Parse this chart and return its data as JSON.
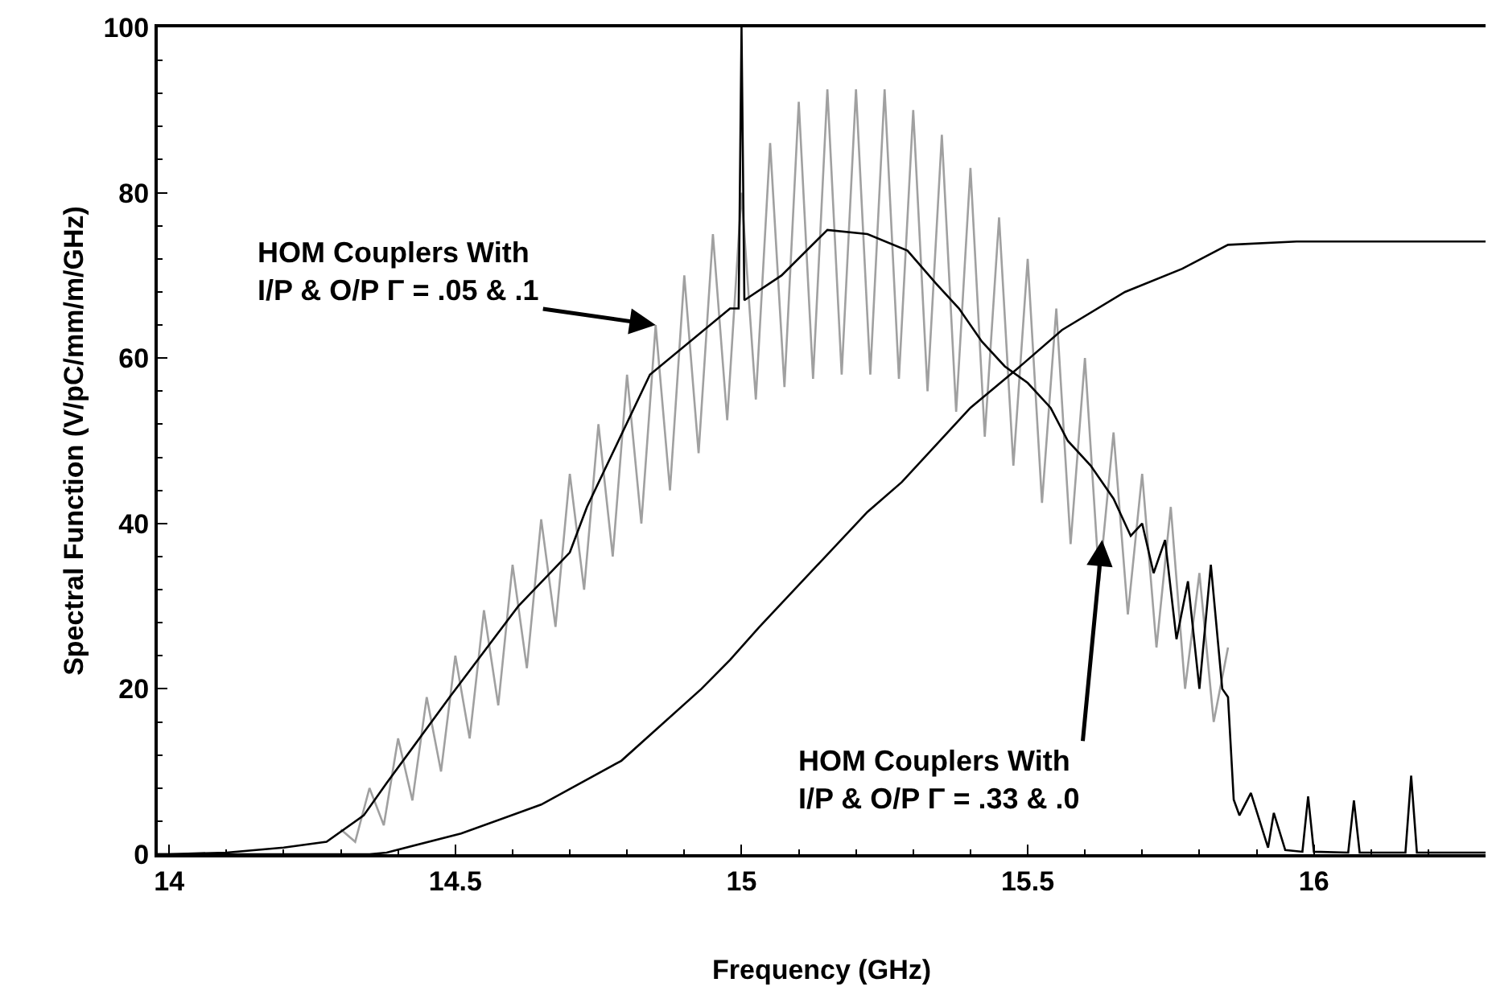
{
  "chart_data": {
    "type": "line",
    "xlabel": "Frequency (GHz)",
    "ylabel": "Spectral Function (V/pC/mm/m/GHz)",
    "xlim": [
      13.98,
      16.3
    ],
    "xticks": [
      14,
      14.5,
      15,
      15.5,
      16
    ],
    "ylim": [
      0,
      100
    ],
    "yticks": [
      0,
      20,
      40,
      60,
      80,
      100
    ],
    "legend": false,
    "marker": "none",
    "line_style": "solid",
    "series": [
      {
        "color": "#a0a0a0",
        "x": [
          14.3,
          14.325,
          14.35,
          14.375,
          14.4,
          14.425,
          14.45,
          14.475,
          14.5,
          14.525,
          14.55,
          14.575,
          14.6,
          14.625,
          14.65,
          14.675,
          14.7,
          14.725,
          14.75,
          14.775,
          14.8,
          14.825,
          14.85,
          14.875,
          14.9,
          14.925,
          14.95,
          14.975,
          15.0,
          15.025,
          15.05,
          15.075,
          15.1,
          15.125,
          15.15,
          15.175,
          15.2,
          15.225,
          15.25,
          15.275,
          15.3,
          15.325,
          15.35,
          15.375,
          15.4,
          15.425,
          15.45,
          15.475,
          15.5,
          15.525,
          15.55,
          15.575,
          15.6,
          15.625,
          15.65,
          15.675,
          15.7,
          15.725,
          15.75,
          15.775,
          15.8,
          15.825,
          15.85
        ],
        "values": [
          3,
          1.5,
          8,
          3.5,
          14,
          6.5,
          19,
          10,
          24,
          14,
          29.5,
          18,
          35,
          22.5,
          40.5,
          27.5,
          46,
          32,
          52,
          36,
          58,
          40,
          64,
          44,
          70,
          48.5,
          75,
          52.5,
          80,
          55,
          86,
          56.5,
          91,
          57.5,
          92.5,
          58,
          92.5,
          58,
          92.5,
          57.5,
          90,
          56,
          87,
          53.5,
          83,
          50.5,
          77,
          47,
          72,
          42.5,
          66,
          37.5,
          60,
          33,
          51,
          29,
          46,
          25,
          42,
          20,
          34,
          16,
          25
        ]
      },
      {
        "color": "#000000",
        "x": [
          13.98,
          14.0,
          14.1,
          14.2,
          14.275,
          14.34,
          14.38,
          14.49,
          14.61,
          14.7,
          14.73,
          14.84,
          14.98,
          14.995,
          15.0,
          15.005,
          15.07,
          15.15,
          15.22,
          15.29,
          15.34,
          15.38,
          15.42,
          15.46,
          15.5,
          15.54,
          15.57,
          15.61,
          15.65,
          15.68,
          15.7,
          15.72,
          15.74,
          15.76,
          15.78,
          15.8,
          15.82,
          15.84,
          15.85,
          15.86,
          15.87,
          15.89,
          15.92,
          15.93,
          15.95,
          15.98,
          15.99,
          16.0,
          16.06,
          16.07,
          16.08,
          16.16,
          16.17,
          16.18,
          16.3
        ],
        "values": [
          0,
          0,
          0.2,
          0.8,
          1.5,
          4.7,
          8.6,
          19,
          30,
          36.5,
          42,
          58,
          66,
          66,
          100,
          67,
          70,
          75.5,
          75,
          73,
          69,
          66,
          62,
          59,
          57,
          54,
          50,
          47,
          43,
          38.5,
          40,
          34,
          38,
          26,
          33,
          20,
          35,
          20,
          19,
          6.6,
          4.7,
          7.4,
          0.8,
          5,
          0.5,
          0.3,
          7,
          0.3,
          0.2,
          6.5,
          0.2,
          0.2,
          9.5,
          0.2,
          0.2
        ]
      },
      {
        "color": "#000000",
        "x": [
          13.98,
          14.35,
          14.38,
          14.51,
          14.65,
          14.79,
          14.93,
          14.98,
          15.03,
          15.22,
          15.28,
          15.4,
          15.48,
          15.56,
          15.67,
          15.77,
          15.85,
          15.97,
          16.3
        ],
        "values": [
          0,
          0,
          0.2,
          2.5,
          6,
          11.3,
          20,
          23.5,
          27.4,
          41.4,
          45,
          54,
          58.6,
          63.4,
          68,
          70.8,
          73.7,
          74.1,
          74.1
        ]
      }
    ],
    "annotations": [
      {
        "text": "HOM Couplers With\nI/P & O/P Γ = .05 & .1",
        "x": 14.85,
        "y": 64
      },
      {
        "text": "HOM Couplers With\nI/P & O/P Γ = .33 & .0",
        "x": 15.63,
        "y": 38
      }
    ]
  }
}
